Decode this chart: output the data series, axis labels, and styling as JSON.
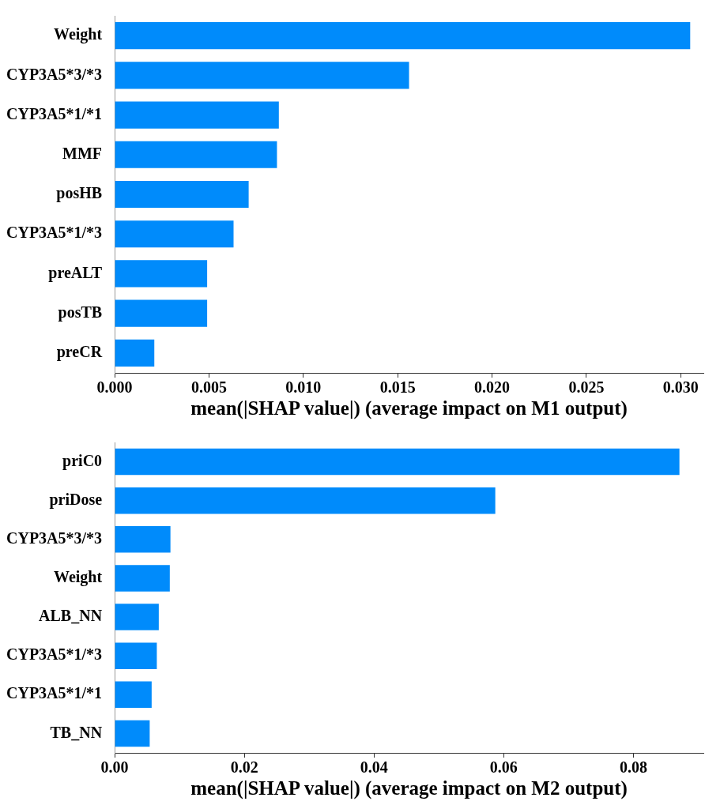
{
  "chart_data": [
    {
      "type": "bar",
      "orientation": "horizontal",
      "xlabel": "mean(|SHAP value|) (average impact on M1 output)",
      "categories": [
        "Weight",
        "CYP3A5*3/*3",
        "CYP3A5*1/*1",
        "MMF",
        "posHB",
        "CYP3A5*1/*3",
        "preALT",
        "posTB",
        "preCR"
      ],
      "values": [
        0.0305,
        0.0156,
        0.0087,
        0.0086,
        0.0071,
        0.0063,
        0.0049,
        0.0049,
        0.0021
      ],
      "color": "#008bfb",
      "xlim": [
        0,
        0.0312
      ],
      "xticks": [
        {
          "value": 0,
          "label": "0.000"
        },
        {
          "value": 0.005,
          "label": "0.005"
        },
        {
          "value": 0.01,
          "label": "0.010"
        },
        {
          "value": 0.015,
          "label": "0.015"
        },
        {
          "value": 0.02,
          "label": "0.020"
        },
        {
          "value": 0.025,
          "label": "0.025"
        },
        {
          "value": 0.03,
          "label": "0.030"
        }
      ]
    },
    {
      "type": "bar",
      "orientation": "horizontal",
      "xlabel": "mean(|SHAP value|) (average impact on M2 output)",
      "categories": [
        "priC0",
        "priDose",
        "CYP3A5*3/*3",
        "Weight",
        "ALB_NN",
        "CYP3A5*1/*3",
        "CYP3A5*1/*1",
        "TB_NN"
      ],
      "values": [
        0.0871,
        0.0587,
        0.0086,
        0.0085,
        0.0068,
        0.0065,
        0.0057,
        0.0054
      ],
      "color": "#008bfb",
      "xlim": [
        0,
        0.0908
      ],
      "xticks": [
        {
          "value": 0,
          "label": "0.00"
        },
        {
          "value": 0.02,
          "label": "0.02"
        },
        {
          "value": 0.04,
          "label": "0.04"
        },
        {
          "value": 0.06,
          "label": "0.06"
        },
        {
          "value": 0.08,
          "label": "0.08"
        }
      ]
    }
  ]
}
